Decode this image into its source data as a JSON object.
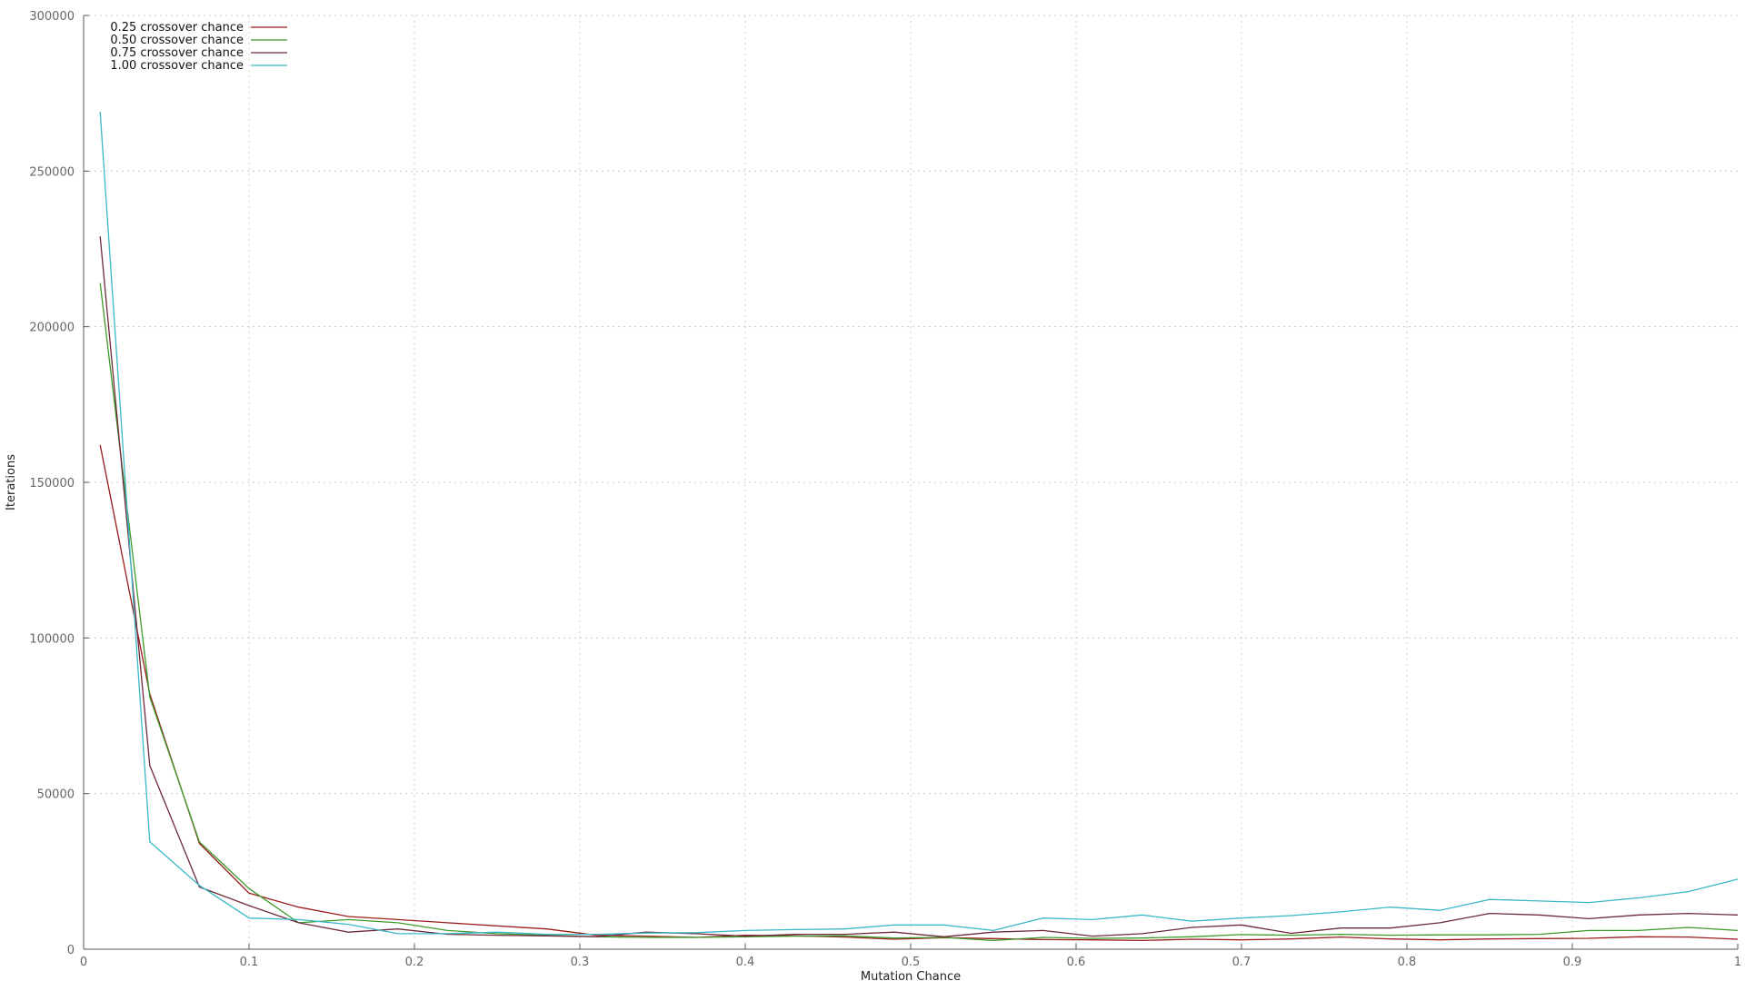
{
  "chart_data": {
    "type": "line",
    "title": "",
    "xlabel": "Mutation Chance",
    "ylabel": "Iterations",
    "xlim": [
      0,
      1
    ],
    "ylim": [
      0,
      300000
    ],
    "x_ticks": [
      0,
      0.1,
      0.2,
      0.3,
      0.4,
      0.5,
      0.6,
      0.7,
      0.8,
      0.9,
      1
    ],
    "x_tick_labels": [
      "0",
      "0.1",
      "0.2",
      "0.3",
      "0.4",
      "0.5",
      "0.6",
      "0.7",
      "0.8",
      "0.9",
      "1"
    ],
    "y_ticks": [
      0,
      50000,
      100000,
      150000,
      200000,
      250000,
      300000
    ],
    "y_tick_labels": [
      "0",
      "50000",
      "100000",
      "150000",
      "200000",
      "250000",
      "300000"
    ],
    "grid": true,
    "legend_position": "top-left",
    "x": [
      0.01,
      0.04,
      0.07,
      0.1,
      0.13,
      0.16,
      0.19,
      0.22,
      0.25,
      0.28,
      0.31,
      0.34,
      0.37,
      0.4,
      0.43,
      0.46,
      0.49,
      0.52,
      0.55,
      0.58,
      0.61,
      0.64,
      0.67,
      0.7,
      0.73,
      0.76,
      0.79,
      0.82,
      0.85,
      0.88,
      0.91,
      0.94,
      0.97,
      1.0
    ],
    "series": [
      {
        "name": "0.25 crossover chance",
        "color": "#9b1c1c",
        "values": [
          162000,
          82000,
          34000,
          18000,
          13500,
          10500,
          9500,
          8500,
          7500,
          6500,
          4500,
          4200,
          3800,
          4500,
          4300,
          3900,
          3200,
          3700,
          3400,
          3100,
          3000,
          2800,
          3200,
          3000,
          3300,
          3900,
          3300,
          3000,
          3300,
          3400,
          3500,
          4000,
          3900,
          3200
        ]
      },
      {
        "name": "0.50 crossover chance",
        "color": "#3c9a2a",
        "values": [
          214000,
          81000,
          34500,
          19500,
          8500,
          9500,
          8500,
          6000,
          5000,
          4500,
          4000,
          3800,
          3800,
          4000,
          4200,
          4300,
          3600,
          3800,
          2800,
          3800,
          3500,
          3600,
          4000,
          4700,
          4500,
          4800,
          4500,
          4600,
          4600,
          4800,
          6000,
          6000,
          7000,
          6000
        ]
      },
      {
        "name": "0.75 crossover chance",
        "color": "#6d2a3c",
        "values": [
          229000,
          59000,
          20000,
          14000,
          8500,
          5500,
          6500,
          4800,
          4500,
          4300,
          4000,
          5500,
          5000,
          4200,
          4800,
          4800,
          5500,
          4000,
          5500,
          6000,
          4200,
          5000,
          7000,
          7800,
          5100,
          6800,
          6800,
          8500,
          11500,
          11000,
          9800,
          11000,
          11500,
          11000
        ]
      },
      {
        "name": "1.00 crossover chance",
        "color": "#3bb8c8",
        "values": [
          269000,
          34500,
          20500,
          10000,
          9500,
          8000,
          5000,
          5000,
          5500,
          4800,
          4800,
          5200,
          5300,
          6000,
          6300,
          6500,
          7800,
          7800,
          6000,
          10000,
          9500,
          11000,
          9000,
          10000,
          10800,
          12000,
          13500,
          12500,
          16000,
          15500,
          15000,
          16500,
          18500,
          22500
        ]
      }
    ]
  }
}
